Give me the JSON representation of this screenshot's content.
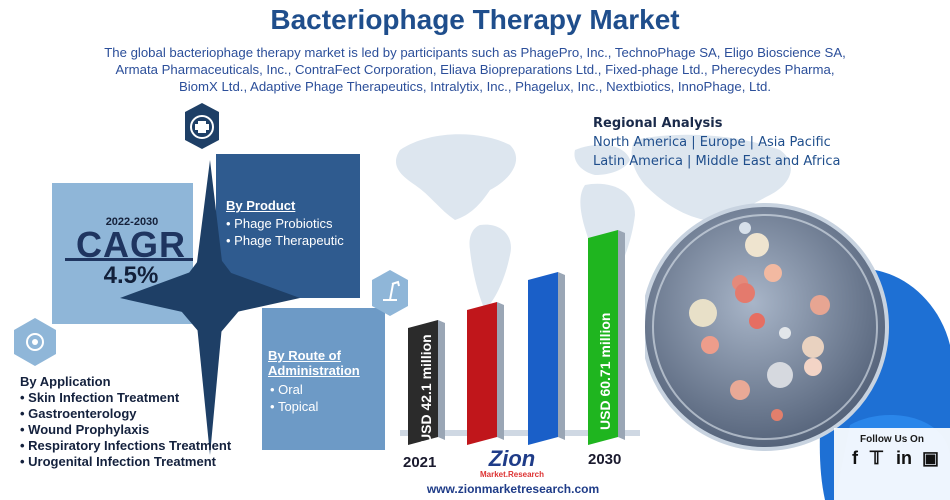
{
  "title": "Bacteriophage Therapy Market",
  "subtitle": "The global bacteriophage therapy market is led by participants such as PhagePro, Inc., TechnoPhage SA, Eligo Bioscience SA, Armata Pharmaceuticals, Inc., ContraFect Corporation, Eliava Biopreparations Ltd., Fixed-phage Ltd., Pherecydes Pharma, BiomX Ltd., Adaptive Phage Therapeutics, Intralytix, Inc., Phagelux, Inc., Nextbiotics, InnoPhage, Ltd.",
  "regional": {
    "title": "Regional Analysis",
    "line1": "North America | Europe | Asia Pacific",
    "line2": "Latin America | Middle East and Africa"
  },
  "cagr": {
    "years": "2022-2030",
    "label": "CAGR",
    "value": "4.5%"
  },
  "product": {
    "title": "By Product",
    "items": [
      "Phage Probiotics",
      "Phage Therapeutic"
    ]
  },
  "route": {
    "title_line1": "By Route of",
    "title_line2": "Administration",
    "items": [
      "Oral",
      "Topical"
    ]
  },
  "application": {
    "title": "By Application",
    "items": [
      "Skin Infection Treatment",
      "Gastroenterology",
      "Wound Prophylaxis",
      "Respiratory Infections Treatment",
      "Urogenital Infection Treatment"
    ]
  },
  "bars": {
    "label_2021": "USD 42.1 million",
    "label_2030": "USD 60.71 million",
    "year_start": "2021",
    "year_end": "2030",
    "values": [
      42.1,
      46.5,
      51.5,
      55.8,
      60.71
    ],
    "colors": [
      "#2b2b2b",
      "#c0161b",
      "#1a5fc8",
      "#1fb51f"
    ]
  },
  "follow": {
    "label": "Follow Us On",
    "icons": [
      "facebook-icon",
      "twitter-icon",
      "linkedin-icon",
      "instagram-icon"
    ]
  },
  "logo": {
    "main": "Zion",
    "sub": "Market.Research"
  },
  "url": "www.zionmarketresearch.com",
  "colors": {
    "title": "#1f4e8c",
    "dark_blue": "#2f5b8f",
    "mid_blue": "#6d9ac6",
    "light_blue": "#8fb6d8"
  }
}
